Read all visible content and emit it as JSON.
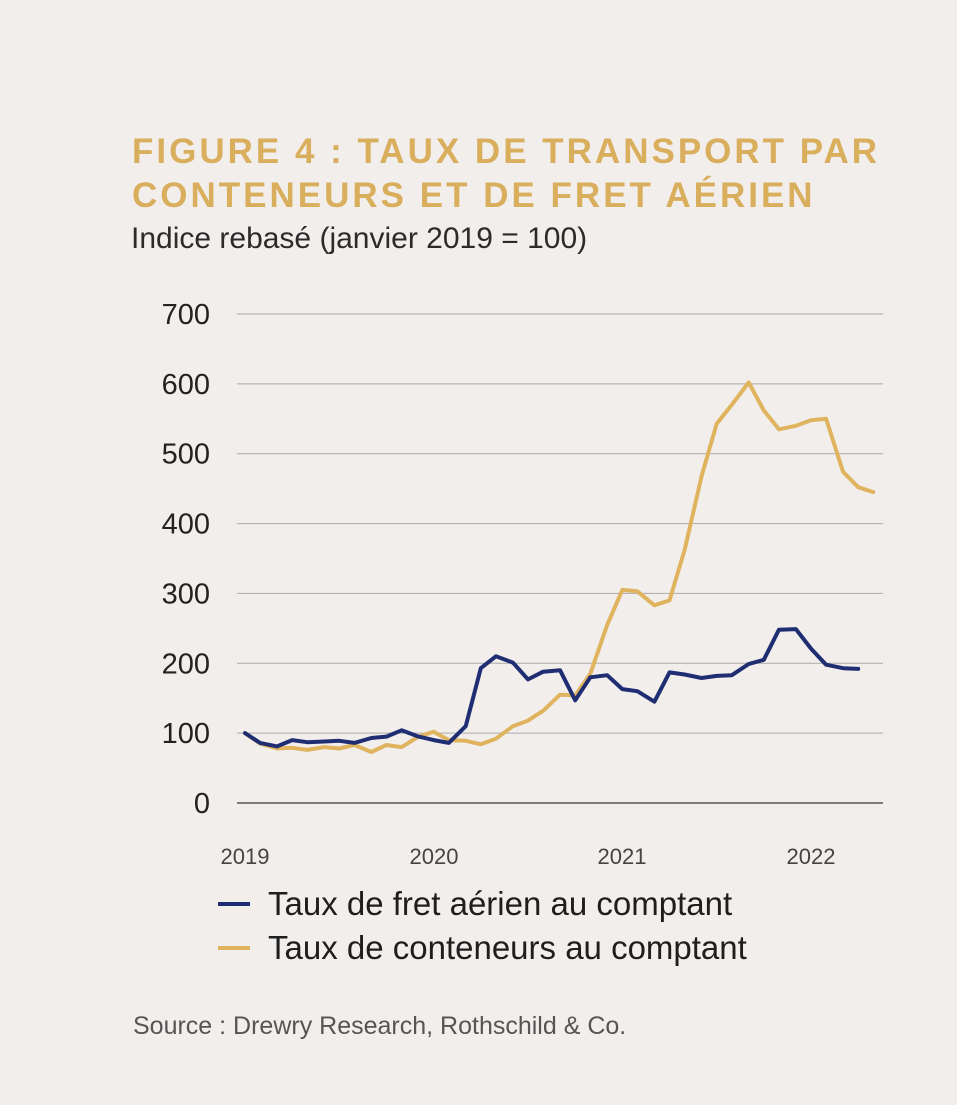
{
  "title": "FIGURE 4 : TAUX DE TRANSPORT PAR CONTENEURS ET DE FRET AÉRIEN",
  "subtitle": "Indice rebasé (janvier 2019 = 100)",
  "source": "Source : Drewry Research, Rothschild & Co.",
  "colors": {
    "background": "#f2eeec",
    "title": "#d9ae5d",
    "air_freight": "#1f2e73",
    "container": "#e0b45f",
    "grid": "#aaaaaa"
  },
  "chart_data": {
    "type": "line",
    "xlim": [
      2019,
      2022.42
    ],
    "ylim": [
      0,
      700
    ],
    "yticks": [
      0,
      100,
      200,
      300,
      400,
      500,
      600,
      700
    ],
    "xticks": [
      "2019",
      "2020",
      "2021",
      "2022"
    ],
    "grid": true,
    "legend_position": "bottom",
    "series": [
      {
        "name": "Taux de fret aérien au comptant",
        "color": "#1f2e73",
        "x": [
          2019.0,
          2019.08,
          2019.17,
          2019.25,
          2019.33,
          2019.42,
          2019.5,
          2019.58,
          2019.67,
          2019.75,
          2019.83,
          2019.92,
          2020.0,
          2020.08,
          2020.17,
          2020.25,
          2020.33,
          2020.42,
          2020.5,
          2020.58,
          2020.67,
          2020.75,
          2020.83,
          2020.92,
          2021.0,
          2021.08,
          2021.17,
          2021.25,
          2021.33,
          2021.42,
          2021.5,
          2021.58,
          2021.67,
          2021.75,
          2021.83,
          2021.92,
          2022.0,
          2022.08,
          2022.17,
          2022.25
        ],
        "y": [
          100,
          86,
          81,
          90,
          87,
          88,
          89,
          86,
          93,
          95,
          104,
          95,
          90,
          86,
          110,
          193,
          210,
          201,
          177,
          188,
          190,
          147,
          180,
          183,
          163,
          160,
          145,
          187,
          184,
          179,
          182,
          183,
          199,
          205,
          248,
          249,
          221,
          198,
          193,
          192
        ]
      },
      {
        "name": "Taux de conteneurs au comptant",
        "color": "#e0b45f",
        "x": [
          2019.0,
          2019.08,
          2019.17,
          2019.25,
          2019.33,
          2019.42,
          2019.5,
          2019.58,
          2019.67,
          2019.75,
          2019.83,
          2019.92,
          2020.0,
          2020.08,
          2020.17,
          2020.25,
          2020.33,
          2020.42,
          2020.5,
          2020.58,
          2020.67,
          2020.75,
          2020.83,
          2020.92,
          2021.0,
          2021.08,
          2021.17,
          2021.25,
          2021.33,
          2021.42,
          2021.5,
          2021.58,
          2021.67,
          2021.75,
          2021.83,
          2021.92,
          2022.0,
          2022.08,
          2022.17,
          2022.25,
          2022.33
        ],
        "y": [
          100,
          85,
          78,
          79,
          76,
          80,
          78,
          83,
          73,
          83,
          80,
          95,
          102,
          90,
          89,
          84,
          92,
          110,
          118,
          132,
          155,
          154,
          185,
          255,
          305,
          303,
          283,
          290,
          362,
          468,
          543,
          570,
          602,
          562,
          535,
          540,
          548,
          550,
          474,
          452,
          445
        ]
      }
    ]
  }
}
